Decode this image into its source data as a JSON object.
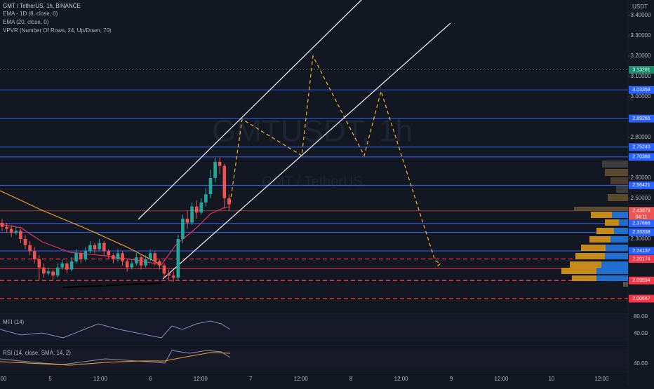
{
  "header": {
    "symbol": "GMT / TetherUS, 1h, BINANCE",
    "indicators": [
      "EMA - 1D (8, close, 0)",
      "EMA (20, close, 0)",
      "VPVR (Number Of Rows, 24, Up/Down, 70)"
    ]
  },
  "watermark": {
    "main": "GMTUSDT, 1h",
    "sub": "GMT / TetherUS"
  },
  "axis": {
    "currency": "USDT",
    "ylim": [
      1.9414,
      3.4759
    ],
    "ticks": [
      {
        "value": 3.4,
        "label": "3.40000"
      },
      {
        "value": 3.3,
        "label": "3.30000"
      },
      {
        "value": 3.2,
        "label": "3.20000"
      },
      {
        "value": 3.1,
        "label": "3.10000"
      },
      {
        "value": 3.0,
        "label": "3.00000"
      },
      {
        "value": 2.8,
        "label": "2.80000"
      },
      {
        "value": 2.6,
        "label": "2.60000"
      },
      {
        "value": 2.5,
        "label": "2.50000"
      },
      {
        "value": 2.3,
        "label": "2.30000"
      }
    ]
  },
  "levels": [
    {
      "value": 3.13281,
      "label": "3.13281",
      "color": "#1b8a6b",
      "style": "dotted"
    },
    {
      "value": 3.03358,
      "label": "3.03358",
      "color": "#2962ff",
      "style": "solid"
    },
    {
      "value": 2.89266,
      "label": "2.89266",
      "color": "#2962ff",
      "style": "solid"
    },
    {
      "value": 2.7524,
      "label": "2.75240",
      "color": "#2962ff",
      "style": "solid"
    },
    {
      "value": 2.70386,
      "label": "2.70386",
      "color": "#2962ff",
      "style": "solid"
    },
    {
      "value": 2.56421,
      "label": "2.56421",
      "color": "#2962ff",
      "style": "solid"
    },
    {
      "value": 2.43879,
      "label": "2.43879",
      "color": "#ef5350",
      "style": "thin",
      "countdown": "04:11"
    },
    {
      "value": 2.37666,
      "label": "2.37666",
      "color": "#2962ff",
      "style": "solid"
    },
    {
      "value": 2.33338,
      "label": "2.33338",
      "color": "#2962ff",
      "style": "solid"
    },
    {
      "value": 2.24137,
      "label": "2.24137",
      "color": "#2962ff",
      "style": "solid"
    },
    {
      "value": 2.20174,
      "label": "2.20174",
      "color": "#f23645",
      "style": "dashed"
    },
    {
      "value": 2.155,
      "color": "#f23645",
      "style": "solid"
    },
    {
      "value": 2.09594,
      "label": "2.09594",
      "color": "#f23645",
      "style": "dashed"
    },
    {
      "value": 2.00667,
      "label": "2.00667",
      "color": "#f23645",
      "style": "dashed"
    }
  ],
  "candles": [
    [
      2.38,
      2.4,
      2.34,
      2.36
    ],
    [
      2.36,
      2.38,
      2.33,
      2.35
    ],
    [
      2.35,
      2.37,
      2.31,
      2.33
    ],
    [
      2.33,
      2.36,
      2.32,
      2.34
    ],
    [
      2.34,
      2.35,
      2.28,
      2.3
    ],
    [
      2.3,
      2.32,
      2.25,
      2.27
    ],
    [
      2.27,
      2.29,
      2.22,
      2.24
    ],
    [
      2.24,
      2.26,
      2.18,
      2.2
    ],
    [
      2.2,
      2.22,
      2.1,
      2.16
    ],
    [
      2.16,
      2.18,
      2.11,
      2.13
    ],
    [
      2.13,
      2.16,
      2.12,
      2.14
    ],
    [
      2.14,
      2.15,
      2.1,
      2.12
    ],
    [
      2.12,
      2.18,
      2.11,
      2.16
    ],
    [
      2.16,
      2.2,
      2.15,
      2.18
    ],
    [
      2.18,
      2.19,
      2.13,
      2.15
    ],
    [
      2.15,
      2.21,
      2.14,
      2.19
    ],
    [
      2.19,
      2.25,
      2.18,
      2.23
    ],
    [
      2.23,
      2.24,
      2.18,
      2.2
    ],
    [
      2.2,
      2.26,
      2.19,
      2.24
    ],
    [
      2.24,
      2.29,
      2.23,
      2.27
    ],
    [
      2.27,
      2.28,
      2.23,
      2.25
    ],
    [
      2.25,
      2.3,
      2.24,
      2.28
    ],
    [
      2.28,
      2.29,
      2.22,
      2.24
    ],
    [
      2.24,
      2.25,
      2.2,
      2.22
    ],
    [
      2.22,
      2.23,
      2.18,
      2.2
    ],
    [
      2.2,
      2.25,
      2.19,
      2.23
    ],
    [
      2.23,
      2.24,
      2.17,
      2.19
    ],
    [
      2.19,
      2.2,
      2.14,
      2.16
    ],
    [
      2.16,
      2.2,
      2.15,
      2.18
    ],
    [
      2.18,
      2.23,
      2.17,
      2.21
    ],
    [
      2.21,
      2.22,
      2.15,
      2.17
    ],
    [
      2.17,
      2.22,
      2.16,
      2.2
    ],
    [
      2.2,
      2.25,
      2.19,
      2.23
    ],
    [
      2.23,
      2.24,
      2.17,
      2.19
    ],
    [
      2.19,
      2.2,
      2.15,
      2.17
    ],
    [
      2.17,
      2.18,
      2.11,
      2.13
    ],
    [
      2.13,
      2.15,
      2.1,
      2.12
    ],
    [
      2.12,
      2.14,
      2.09,
      2.11
    ],
    [
      2.11,
      2.32,
      2.1,
      2.3
    ],
    [
      2.3,
      2.42,
      2.28,
      2.4
    ],
    [
      2.4,
      2.44,
      2.35,
      2.38
    ],
    [
      2.38,
      2.48,
      2.37,
      2.46
    ],
    [
      2.46,
      2.49,
      2.4,
      2.43
    ],
    [
      2.43,
      2.5,
      2.42,
      2.48
    ],
    [
      2.48,
      2.55,
      2.46,
      2.52
    ],
    [
      2.52,
      2.64,
      2.5,
      2.6
    ],
    [
      2.6,
      2.7,
      2.58,
      2.68
    ],
    [
      2.68,
      2.7,
      2.62,
      2.66
    ],
    [
      2.66,
      2.67,
      2.45,
      2.5
    ],
    [
      2.5,
      2.52,
      2.44,
      2.47
    ]
  ],
  "mfi": {
    "title": "MFI (14)",
    "ticks": [
      "80.00",
      "40.00"
    ]
  },
  "rsi": {
    "title": "RSI (14, close, SMA, 14, 2)",
    "ticks": [
      "40.00"
    ]
  },
  "time_labels": [
    "00",
    "5",
    "12:00",
    "6",
    "12:00",
    "7",
    "12:00",
    "8",
    "12:00",
    "9",
    "12:00",
    "10",
    "12:00"
  ]
}
